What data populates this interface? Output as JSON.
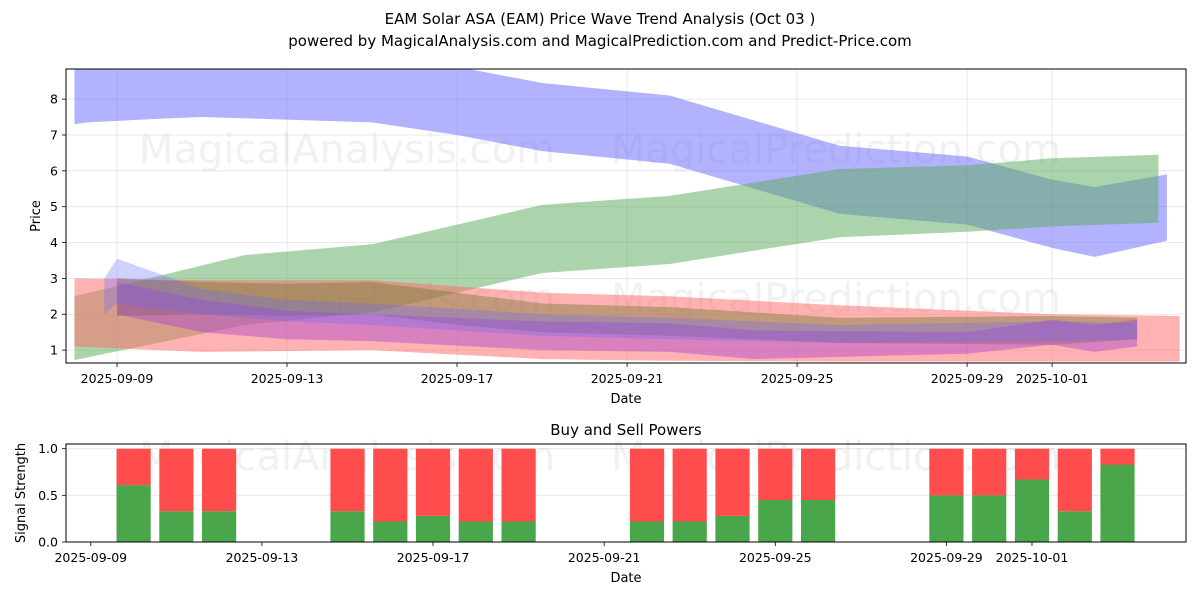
{
  "header": {
    "title": "EAM Solar ASA (EAM) Price Wave Trend Analysis (Oct 03 )",
    "subtitle": "powered by MagicalAnalysis.com and MagicalPrediction.com and Predict-Price.com"
  },
  "watermarks": [
    "MagicalAnalysis.com",
    "MagicalPrediction.com"
  ],
  "chart_data": [
    {
      "type": "area",
      "title": "",
      "xlabel": "Date",
      "ylabel": "Price",
      "ylim": [
        0.64,
        8.84
      ],
      "xlim": [
        "2025-09-07.8",
        "2025-10-04.15"
      ],
      "grid": true,
      "x_ticks": [
        "2025-09-09",
        "2025-09-13",
        "2025-09-17",
        "2025-09-21",
        "2025-09-25",
        "2025-09-29",
        "2025-10-01"
      ],
      "y_ticks": [
        1,
        2,
        3,
        4,
        5,
        6,
        7,
        8
      ],
      "colors": {
        "blue": "#6666ff",
        "green": "#5aaa5a",
        "red": "#ff6666",
        "purple": "#aa44cc",
        "olive": "#7a7a3a"
      },
      "bands": [
        {
          "name": "blue-upper-wave",
          "color": "blue",
          "opacity": 0.5,
          "x": [
            "2025-09-08",
            "2025-09-08.3",
            "2025-09-10",
            "2025-09-11",
            "2025-09-15",
            "2025-09-17",
            "2025-09-19",
            "2025-09-22",
            "2025-09-24",
            "2025-09-26",
            "2025-09-29",
            "2025-10-01",
            "2025-10-02",
            "2025-10-03.7"
          ],
          "upper": [
            8.9,
            8.9,
            8.9,
            8.9,
            8.9,
            8.9,
            8.45,
            8.1,
            7.4,
            6.7,
            6.4,
            5.75,
            5.55,
            5.9
          ],
          "lower": [
            7.3,
            7.35,
            7.45,
            7.5,
            7.35,
            7.0,
            6.55,
            6.2,
            5.5,
            4.8,
            4.5,
            3.85,
            3.6,
            4.05
          ]
        },
        {
          "name": "green-upper-wave",
          "color": "green",
          "opacity": 0.5,
          "x": [
            "2025-09-08",
            "2025-09-12",
            "2025-09-15",
            "2025-09-19",
            "2025-09-22",
            "2025-09-26",
            "2025-09-29",
            "2025-10-01",
            "2025-10-03.5"
          ],
          "upper": [
            2.5,
            3.65,
            3.95,
            5.05,
            5.3,
            6.05,
            6.15,
            6.35,
            6.45
          ],
          "lower": [
            0.72,
            1.7,
            2.05,
            3.15,
            3.4,
            4.15,
            4.3,
            4.45,
            4.55
          ]
        },
        {
          "name": "red-wave",
          "color": "red",
          "opacity": 0.5,
          "x": [
            "2025-09-08",
            "2025-09-11",
            "2025-09-15",
            "2025-09-19",
            "2025-09-22",
            "2025-09-26",
            "2025-09-29",
            "2025-10-01",
            "2025-10-04"
          ],
          "upper": [
            3.0,
            2.95,
            2.95,
            2.6,
            2.5,
            2.25,
            2.1,
            2.0,
            1.95
          ],
          "lower": [
            1.1,
            0.95,
            1.0,
            0.75,
            0.7,
            0.68,
            0.68,
            0.68,
            0.68
          ]
        },
        {
          "name": "olive-wave",
          "color": "olive",
          "opacity": 0.45,
          "x": [
            "2025-09-09",
            "2025-09-11",
            "2025-09-13",
            "2025-09-15",
            "2025-09-17",
            "2025-09-19",
            "2025-09-22",
            "2025-09-26",
            "2025-10-01",
            "2025-10-03"
          ],
          "upper": [
            3.0,
            2.9,
            2.85,
            2.9,
            2.6,
            2.3,
            2.2,
            1.9,
            1.95,
            1.9
          ],
          "lower": [
            1.95,
            2.0,
            1.95,
            2.0,
            1.7,
            1.5,
            1.4,
            1.2,
            1.15,
            1.3
          ]
        },
        {
          "name": "purple-wave",
          "color": "purple",
          "opacity": 0.45,
          "x": [
            "2025-09-09",
            "2025-09-11",
            "2025-09-13",
            "2025-09-15",
            "2025-09-19",
            "2025-09-22",
            "2025-09-24",
            "2025-09-29",
            "2025-10-01",
            "2025-10-02",
            "2025-10-03"
          ],
          "upper": [
            2.9,
            2.4,
            2.1,
            2.0,
            1.8,
            1.75,
            1.55,
            1.5,
            1.85,
            1.7,
            1.85
          ],
          "lower": [
            2.0,
            1.5,
            1.3,
            1.25,
            1.0,
            0.95,
            0.75,
            0.9,
            1.15,
            0.95,
            1.1
          ]
        },
        {
          "name": "blue-lower-wave",
          "color": "blue",
          "opacity": 0.3,
          "x": [
            "2025-09-08.7",
            "2025-09-09",
            "2025-09-11",
            "2025-09-13",
            "2025-09-15",
            "2025-09-19",
            "2025-09-22",
            "2025-09-26",
            "2025-10-01",
            "2025-10-03"
          ],
          "upper": [
            3.0,
            3.55,
            2.7,
            2.4,
            2.3,
            2.0,
            1.9,
            1.7,
            1.8,
            1.75
          ],
          "lower": [
            2.0,
            2.3,
            2.0,
            1.8,
            1.7,
            1.4,
            1.3,
            1.2,
            1.25,
            1.3
          ]
        }
      ]
    },
    {
      "type": "bar",
      "title": "Buy and Sell Powers",
      "xlabel": "Date",
      "ylabel": "Signal Strength",
      "ylim": [
        0,
        1.05
      ],
      "xlim": [
        "2025-09-08.42",
        "2025-10-04.6"
      ],
      "x_ticks": [
        "2025-09-09",
        "2025-09-13",
        "2025-09-17",
        "2025-09-21",
        "2025-09-25",
        "2025-09-29",
        "2025-10-01"
      ],
      "y_ticks": [
        "0.0",
        "0.5",
        "1.0"
      ],
      "colors": {
        "buy": "#4aa64a",
        "sell": "#ff4d4d"
      },
      "categories": [
        "2025-09-10",
        "2025-09-11",
        "2025-09-12",
        "2025-09-15",
        "2025-09-16",
        "2025-09-17",
        "2025-09-18",
        "2025-09-19",
        "2025-09-22",
        "2025-09-23",
        "2025-09-24",
        "2025-09-25",
        "2025-09-26",
        "2025-09-29",
        "2025-09-30",
        "2025-10-01",
        "2025-10-02",
        "2025-10-03"
      ],
      "series": [
        {
          "name": "Buy",
          "values": [
            0.61,
            0.33,
            0.33,
            0.33,
            0.22,
            0.28,
            0.22,
            0.22,
            0.22,
            0.22,
            0.28,
            0.45,
            0.45,
            0.5,
            0.5,
            0.67,
            0.33,
            0.83
          ]
        },
        {
          "name": "Sell",
          "values": [
            0.39,
            0.67,
            0.67,
            0.67,
            0.78,
            0.72,
            0.78,
            0.78,
            0.78,
            0.78,
            0.72,
            0.55,
            0.55,
            0.5,
            0.5,
            0.33,
            0.67,
            0.17
          ]
        }
      ]
    }
  ]
}
